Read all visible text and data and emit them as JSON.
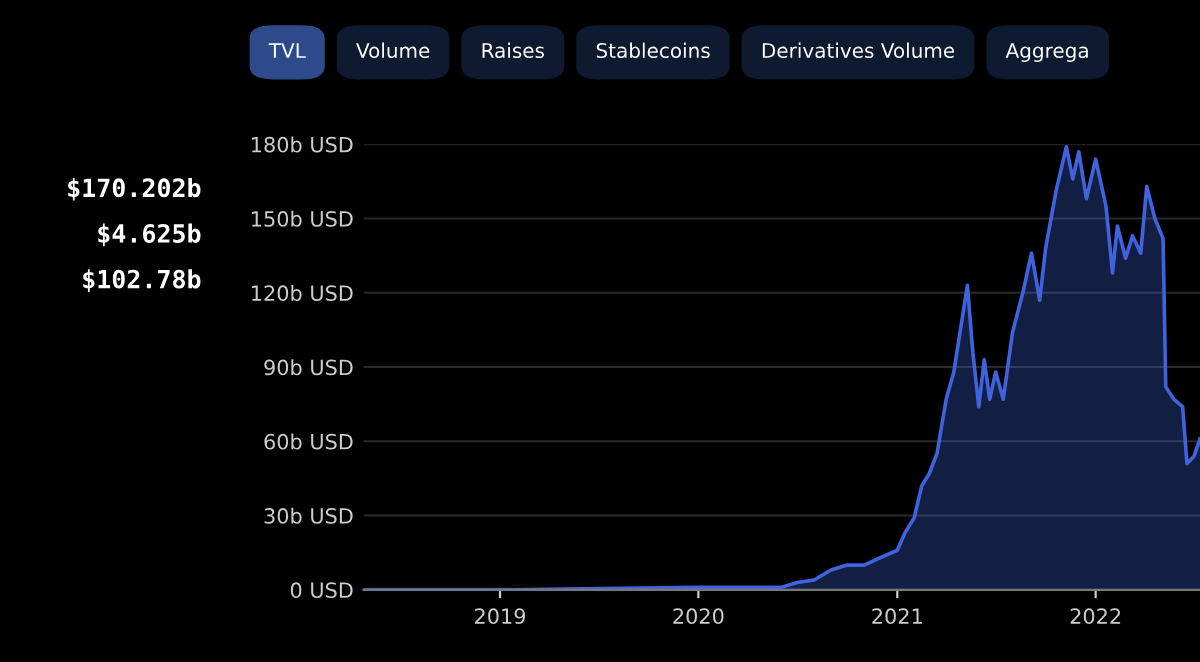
{
  "chart_data": {
    "type": "area",
    "annotations": [
      "TVL",
      "Volume",
      "Raises",
      "Stablecoins",
      "Derivatives Volume",
      "Aggrega",
      "$170.202b",
      "$4.625b",
      "$102.78b"
    ],
    "x": [
      "2018-04-25",
      "2019-01-01",
      "2020-01-01",
      "2020-03-15",
      "2020-06-01",
      "2020-07-01",
      "2020-08-01",
      "2020-09-01",
      "2020-10-01",
      "2020-11-01",
      "2020-12-01",
      "2021-01-01",
      "2021-01-15",
      "2021-02-01",
      "2021-02-15",
      "2021-03-01",
      "2021-03-15",
      "2021-04-01",
      "2021-04-15",
      "2021-05-10",
      "2021-05-20",
      "2021-05-31",
      "2021-06-10",
      "2021-06-20",
      "2021-07-01",
      "2021-07-15",
      "2021-08-01",
      "2021-08-20",
      "2021-09-05",
      "2021-09-20",
      "2021-10-01",
      "2021-10-20",
      "2021-11-08",
      "2021-11-20",
      "2021-12-01",
      "2021-12-15",
      "2022-01-01",
      "2022-01-20",
      "2022-02-01",
      "2022-02-10",
      "2022-02-25",
      "2022-03-10",
      "2022-03-25",
      "2022-04-05",
      "2022-04-20",
      "2022-05-05",
      "2022-05-10",
      "2022-05-25",
      "2022-06-10",
      "2022-06-18",
      "2022-07-01",
      "2022-07-12"
    ],
    "series": [
      {
        "color": "#3f63dd",
        "values": [
          0,
          0,
          1,
          1,
          1,
          3,
          4,
          8,
          10,
          10,
          13,
          16,
          23,
          29,
          42,
          47,
          55,
          77,
          88,
          123,
          96,
          74,
          93,
          77,
          88,
          77,
          104,
          120,
          136,
          117,
          138,
          161,
          179,
          166,
          177,
          158,
          174,
          155,
          128,
          147,
          134,
          143,
          136,
          163,
          150,
          142,
          82,
          77,
          74,
          51,
          54,
          61
        ]
      }
    ],
    "xlim": [
      "2018-04-25",
      "2022-07-12"
    ],
    "xticks": [
      {
        "value": "2019-01-01",
        "label": "2019"
      },
      {
        "value": "2020-01-01",
        "label": "2020"
      },
      {
        "value": "2021-01-01",
        "label": "2021"
      },
      {
        "value": "2022-01-01",
        "label": "2022"
      }
    ],
    "ylim": [
      0,
      180
    ],
    "yticks": [
      {
        "value": 0,
        "label": "0 USD"
      },
      {
        "value": 30,
        "label": "30b USD"
      },
      {
        "value": 60,
        "label": "60b USD"
      },
      {
        "value": 90,
        "label": "90b USD"
      },
      {
        "value": 120,
        "label": "120b USD"
      },
      {
        "value": 150,
        "label": "150b USD"
      },
      {
        "value": 180,
        "label": "180b USD"
      }
    ],
    "grid": "y"
  }
}
